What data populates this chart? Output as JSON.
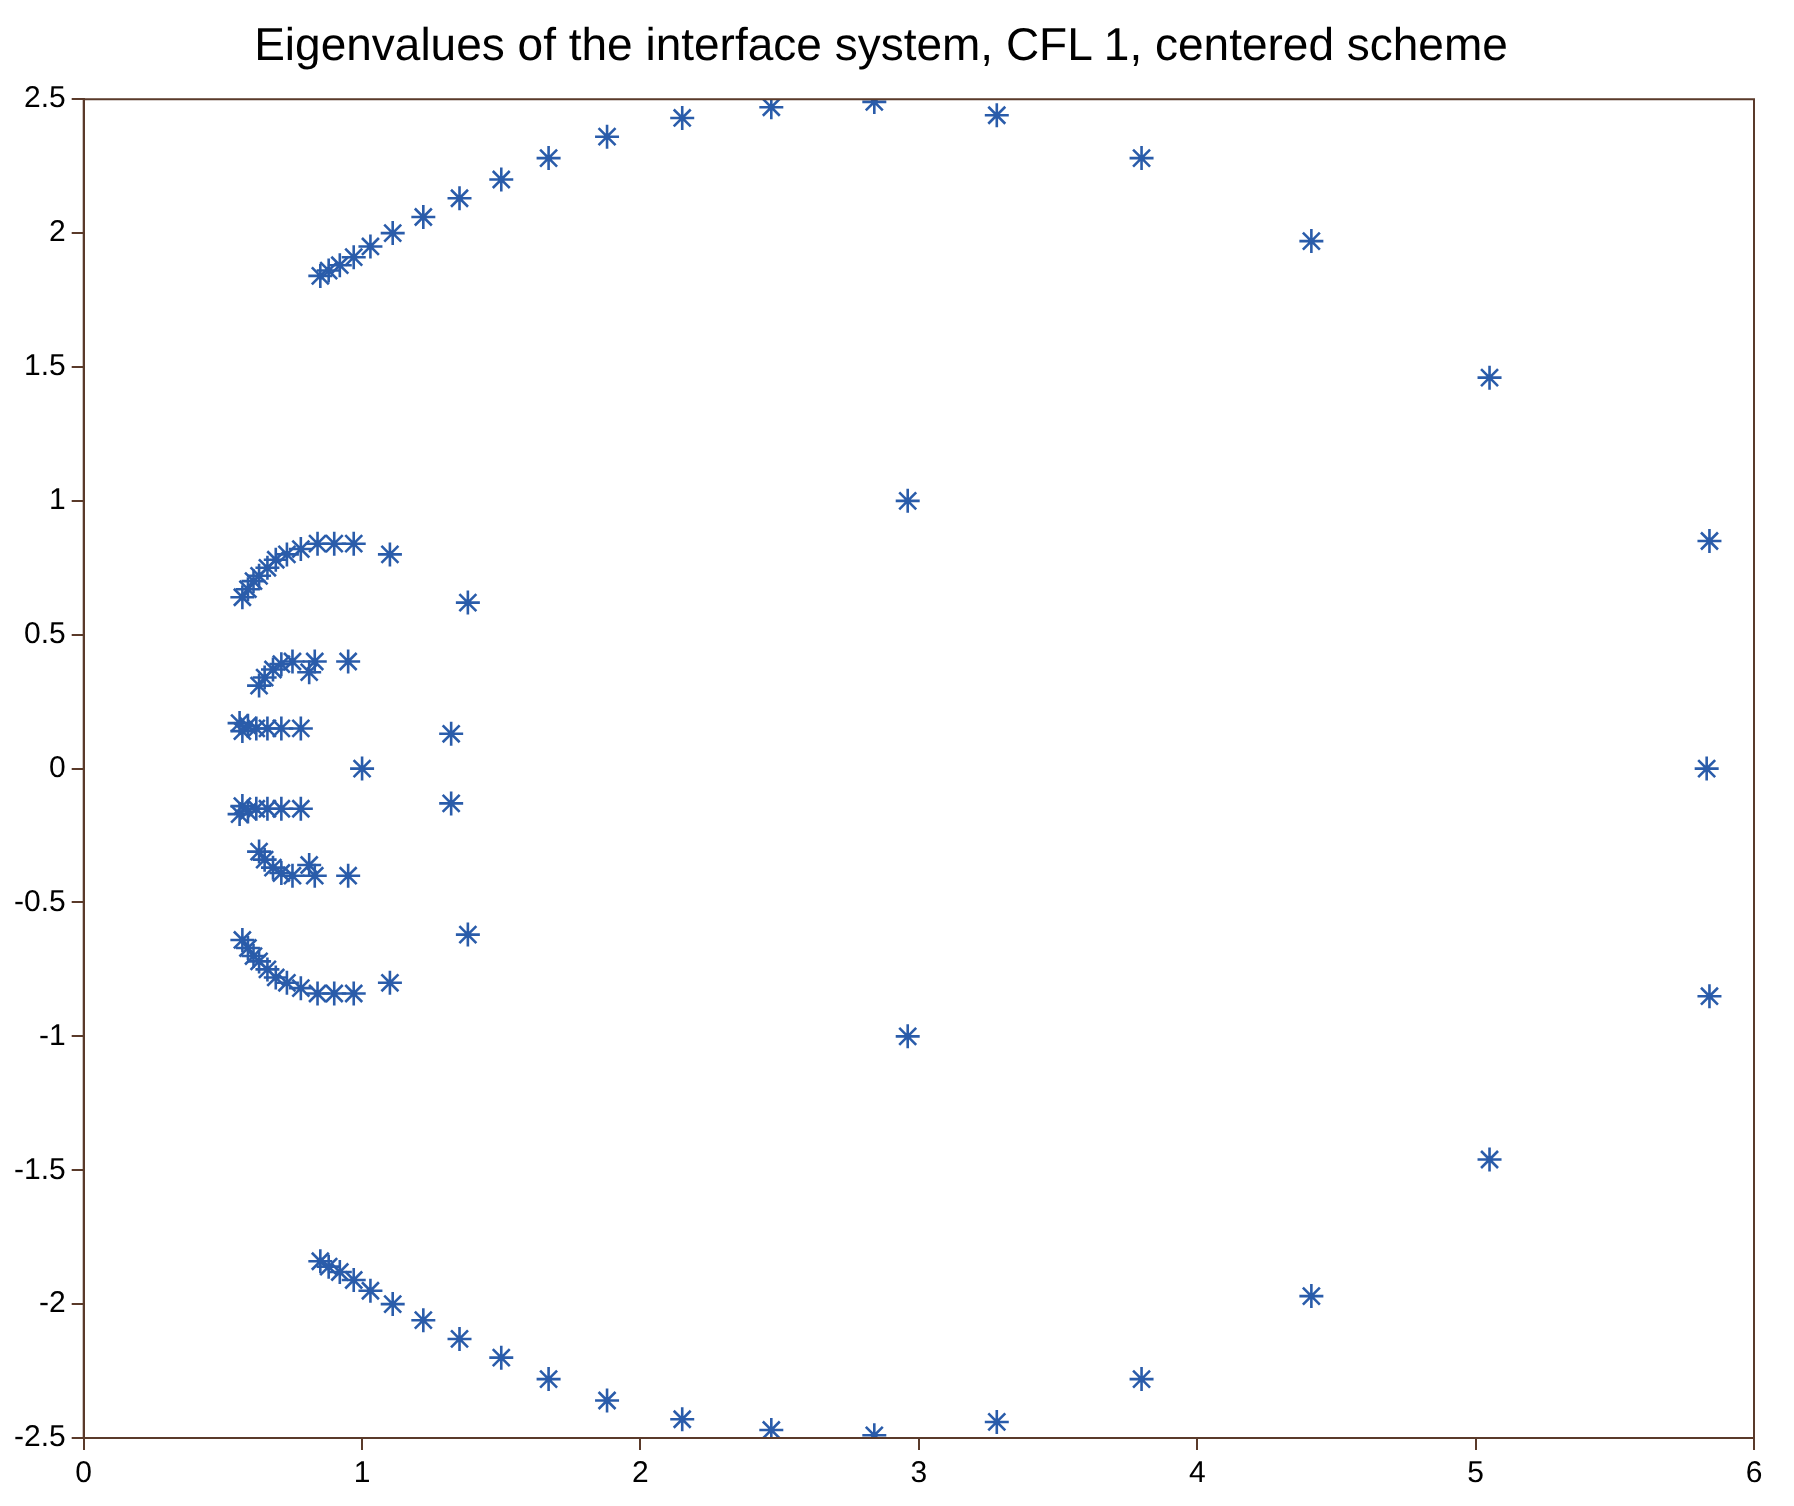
{
  "chart_data": {
    "type": "scatter",
    "title": "Eigenvalues of the interface system, CFL 1, centered scheme",
    "x": [
      0.85,
      0.88,
      0.92,
      0.97,
      1.03,
      1.11,
      1.22,
      1.35,
      1.5,
      1.67,
      1.88,
      2.15,
      2.47,
      2.84,
      3.28,
      3.8,
      4.41,
      5.05,
      5.84,
      2.96,
      1.38,
      1.32,
      1.0,
      5.83,
      0.57,
      0.59,
      0.61,
      0.63,
      0.66,
      0.69,
      0.73,
      0.78,
      0.84,
      0.9,
      0.97,
      1.1,
      0.63,
      0.65,
      0.68,
      0.71,
      0.75,
      0.81,
      0.83,
      0.95,
      0.56,
      0.57,
      0.59,
      0.62,
      0.66,
      0.71,
      0.78,
      0.85,
      0.88,
      0.92,
      0.97,
      1.03,
      1.11,
      1.22,
      1.35,
      1.5,
      1.67,
      1.88,
      2.15,
      2.47,
      2.84,
      3.28,
      3.8,
      4.41,
      5.05,
      5.84,
      2.96,
      1.38,
      1.32,
      0.57,
      0.59,
      0.61,
      0.63,
      0.66,
      0.69,
      0.73,
      0.78,
      0.84,
      0.9,
      0.97,
      1.1,
      0.63,
      0.65,
      0.68,
      0.71,
      0.75,
      0.81,
      0.83,
      0.95,
      0.56,
      0.57,
      0.59,
      0.62,
      0.66,
      0.71,
      0.78
    ],
    "series": [
      {
        "color": "#2a5caa",
        "values": [
          1.84,
          1.86,
          1.88,
          1.91,
          1.95,
          2.0,
          2.06,
          2.13,
          2.2,
          2.28,
          2.36,
          2.43,
          2.47,
          2.49,
          2.44,
          2.28,
          1.97,
          1.46,
          0.85,
          1.0,
          0.62,
          0.13,
          0,
          0,
          0.64,
          0.67,
          0.7,
          0.72,
          0.75,
          0.78,
          0.8,
          0.82,
          0.84,
          0.84,
          0.84,
          0.8,
          0.31,
          0.34,
          0.37,
          0.39,
          0.4,
          0.36,
          0.4,
          0.4,
          0.17,
          0.14,
          0.16,
          0.15,
          0.15,
          0.15,
          0.15,
          -1.84,
          -1.86,
          -1.88,
          -1.91,
          -1.95,
          -2.0,
          -2.06,
          -2.13,
          -2.2,
          -2.28,
          -2.36,
          -2.43,
          -2.47,
          -2.49,
          -2.44,
          -2.28,
          -1.97,
          -1.46,
          -0.85,
          -1.0,
          -0.62,
          -0.13,
          -0.64,
          -0.67,
          -0.7,
          -0.72,
          -0.75,
          -0.78,
          -0.8,
          -0.82,
          -0.84,
          -0.84,
          -0.84,
          -0.8,
          -0.31,
          -0.34,
          -0.37,
          -0.39,
          -0.4,
          -0.36,
          -0.4,
          -0.4,
          -0.17,
          -0.14,
          -0.16,
          -0.15,
          -0.15,
          -0.15,
          -0.15
        ]
      }
    ],
    "marker": "cross",
    "grid": false,
    "legend": false,
    "xlim": [
      0,
      6
    ],
    "xticks": [
      0,
      1,
      2,
      3,
      4,
      5,
      6
    ],
    "ylim": [
      -2.5,
      2.5
    ],
    "yticks": [
      -2.5,
      -2,
      -1.5,
      -1,
      -0.5,
      0,
      0.5,
      1,
      1.5,
      2,
      2.5
    ]
  }
}
